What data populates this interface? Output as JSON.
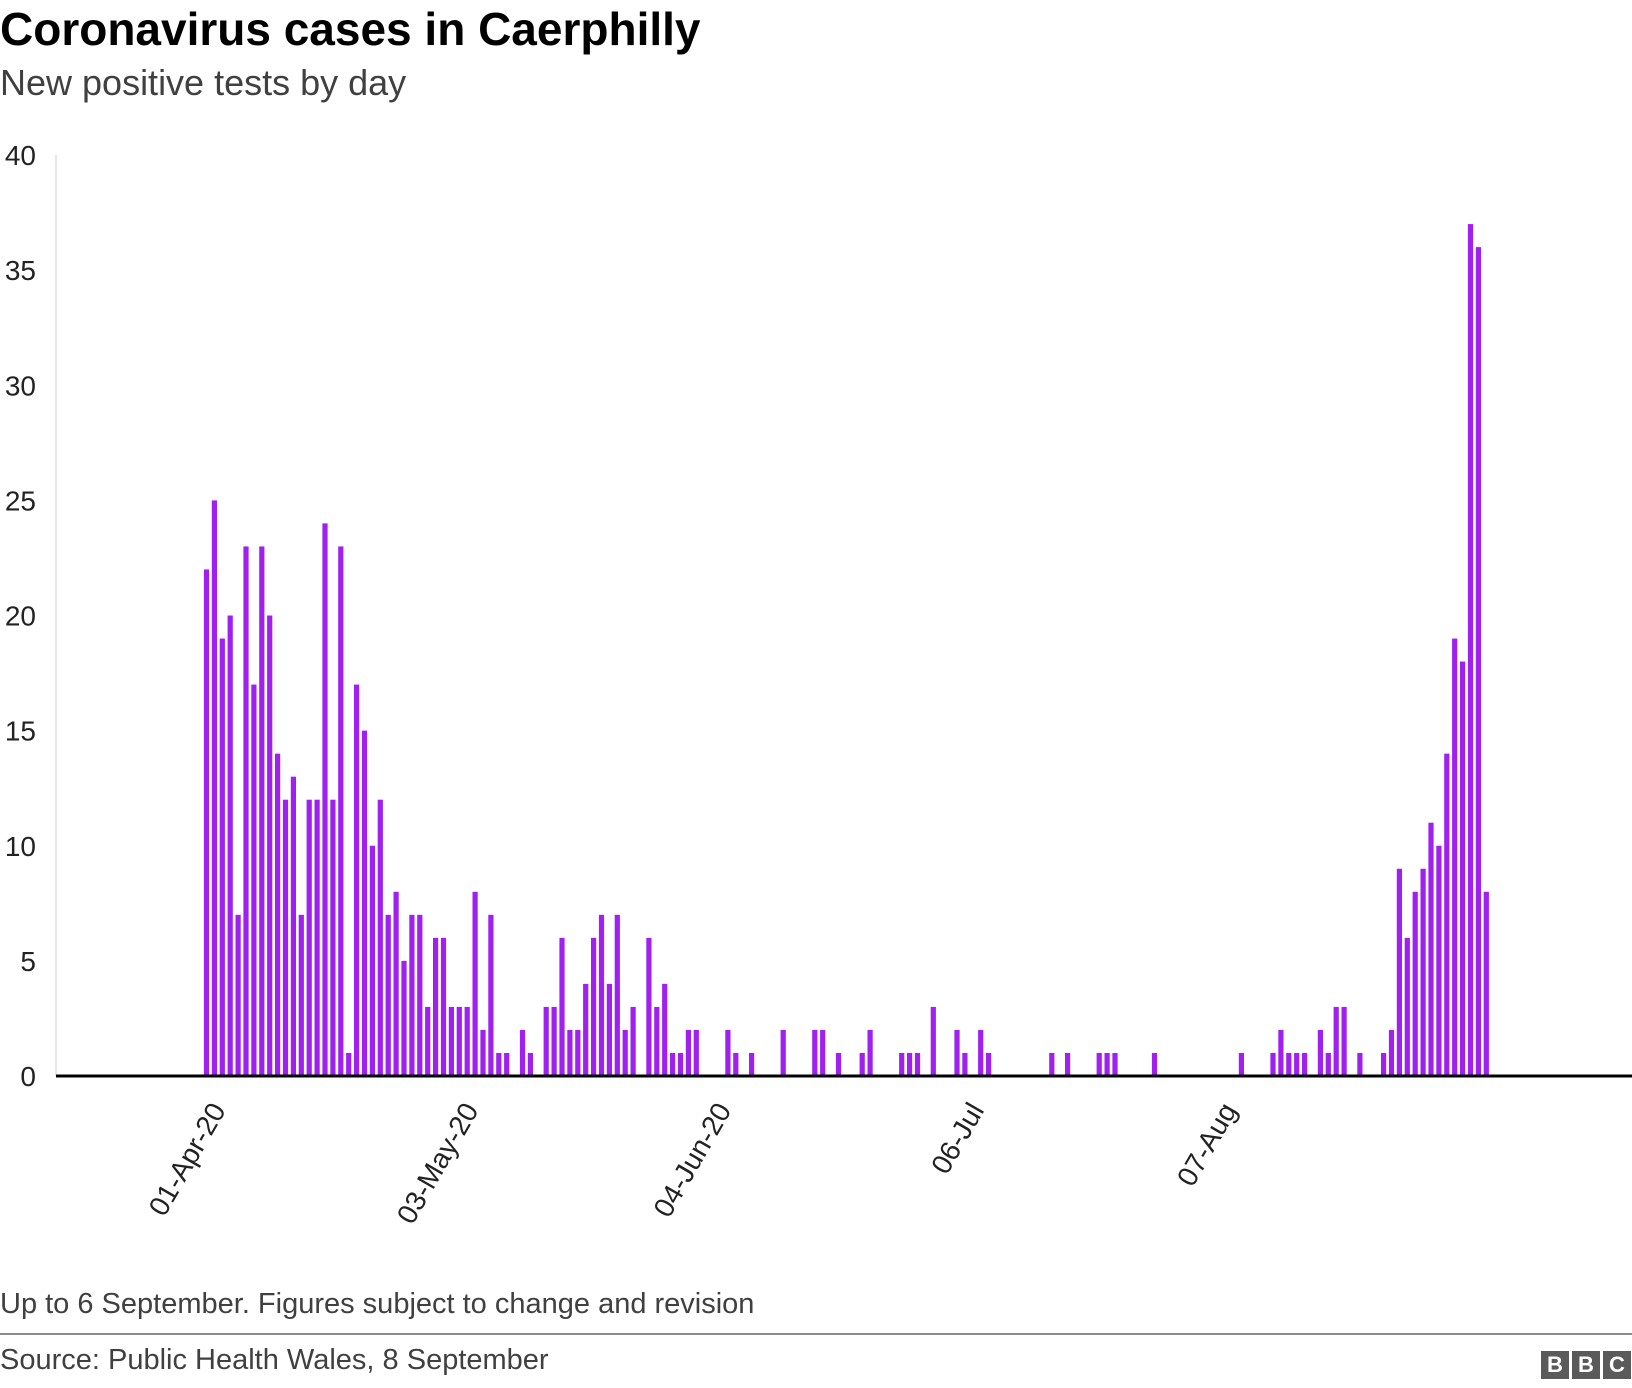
{
  "header": {
    "title": "Coronavirus cases in Caerphilly",
    "subtitle": "New positive tests by day"
  },
  "footer": {
    "note": "Up to 6 September. Figures subject to change and revision",
    "source": "Source: Public Health Wales, 8 September",
    "logo": [
      "B",
      "B",
      "C"
    ]
  },
  "colors": {
    "bar": "#a020f0",
    "axis": "#000000",
    "text": "#222222"
  },
  "chart_data": {
    "type": "bar",
    "title": "Coronavirus cases in Caerphilly",
    "subtitle": "New positive tests by day",
    "xlabel": "",
    "ylabel": "",
    "ylim": [
      0,
      40
    ],
    "yticks": [
      0,
      5,
      10,
      15,
      20,
      25,
      30,
      35,
      40
    ],
    "grid": false,
    "legend": "none",
    "start_date": "2020-03-13",
    "end_date": "2020-09-06",
    "xtick_labels": [
      {
        "label": "01-Apr-20",
        "date": "2020-04-01"
      },
      {
        "label": "03-May-20",
        "date": "2020-05-03"
      },
      {
        "label": "04-Jun-20",
        "date": "2020-06-04"
      },
      {
        "label": "06-Jul",
        "date": "2020-07-06"
      },
      {
        "label": "07-Aug",
        "date": "2020-08-07"
      }
    ],
    "values": [
      0,
      0,
      0,
      0,
      0,
      0,
      0,
      0,
      0,
      0,
      0,
      0,
      0,
      0,
      0,
      0,
      0,
      0,
      0,
      22,
      25,
      19,
      20,
      7,
      23,
      17,
      23,
      20,
      14,
      12,
      13,
      7,
      12,
      12,
      24,
      12,
      23,
      1,
      17,
      15,
      10,
      12,
      7,
      8,
      5,
      7,
      7,
      3,
      6,
      6,
      3,
      3,
      3,
      8,
      2,
      7,
      1,
      1,
      0,
      2,
      1,
      0,
      3,
      3,
      6,
      2,
      2,
      4,
      6,
      7,
      4,
      7,
      2,
      3,
      0,
      6,
      3,
      4,
      1,
      1,
      2,
      2,
      0,
      0,
      0,
      2,
      1,
      0,
      1,
      0,
      0,
      0,
      2,
      0,
      0,
      0,
      2,
      2,
      0,
      1,
      0,
      0,
      1,
      2,
      0,
      0,
      0,
      1,
      1,
      1,
      0,
      3,
      0,
      0,
      2,
      1,
      0,
      2,
      1,
      0,
      0,
      0,
      0,
      0,
      0,
      0,
      1,
      0,
      1,
      0,
      0,
      0,
      1,
      1,
      1,
      0,
      0,
      0,
      0,
      1,
      0,
      0,
      0,
      0,
      0,
      0,
      0,
      0,
      0,
      0,
      1,
      0,
      0,
      0,
      1,
      2,
      1,
      1,
      1,
      0,
      2,
      1,
      3,
      3,
      0,
      1,
      0,
      0,
      1,
      2,
      9,
      6,
      8,
      9,
      11,
      10,
      14,
      19,
      18,
      37,
      36,
      8
    ]
  }
}
